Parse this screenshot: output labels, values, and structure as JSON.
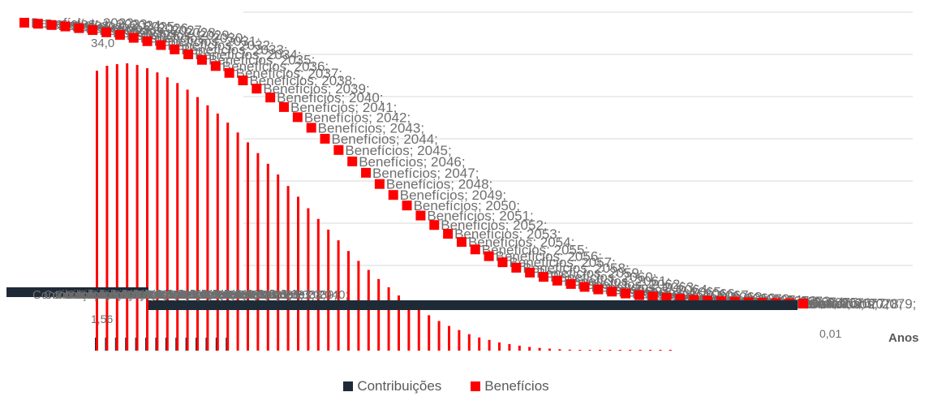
{
  "chart_data": {
    "type": "bar",
    "xlabel": "Anos",
    "ylabel": "",
    "ylim": [
      0,
      45
    ],
    "grid": true,
    "legend_position": "bottom",
    "series": [
      {
        "name": "Contribuições",
        "color": "#1f2a37",
        "label_prefix": "Contribuições",
        "values": [
          1.56,
          1.5,
          1.4,
          1.3,
          1.2,
          1.1,
          1.0,
          0.9,
          0.8,
          0.7,
          0.6,
          0.5,
          0.4,
          0.3,
          0.2,
          0.1,
          0.0,
          0.0,
          0.0
        ]
      },
      {
        "name": "Benefícios",
        "color": "#ff0000",
        "label_prefix": "Benefícios",
        "values": [
          34.0,
          34.6,
          34.8,
          34.9,
          34.7,
          34.3,
          33.8,
          33.2,
          32.5,
          31.7,
          30.8,
          29.8,
          28.8,
          27.7,
          26.5,
          25.3,
          24.0,
          22.7,
          21.4,
          20.0,
          18.7,
          17.3,
          16.0,
          14.7,
          13.4,
          12.1,
          10.9,
          9.8,
          8.7,
          7.7,
          6.7,
          5.8,
          5.0,
          4.3,
          3.6,
          3.0,
          2.5,
          2.0,
          1.6,
          1.3,
          1.0,
          0.8,
          0.6,
          0.45,
          0.33,
          0.24,
          0.17,
          0.12,
          0.08,
          0.05,
          0.03,
          0.02,
          0.01,
          0.0,
          0.0,
          0.0,
          0.0,
          0.0
        ]
      }
    ],
    "first_year": 2022,
    "data_labels_visible": [
      "34,0",
      "1,56",
      "0,01"
    ]
  },
  "legend": {
    "contrib_label": "Contribuições",
    "benef_label": "Benefícios",
    "contrib_color": "#1f2a37",
    "benef_color": "#ff0000"
  }
}
